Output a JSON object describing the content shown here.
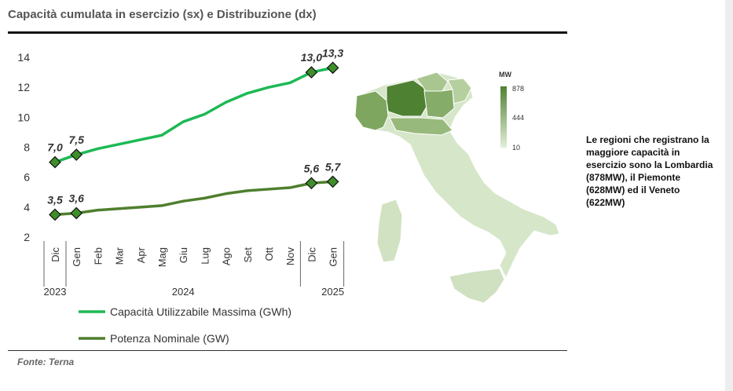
{
  "title": "Capacità cumulata in esercizio (sx) e Distribuzione (dx)",
  "source": "Fonte: Terna",
  "note": "Le regioni che registrano la maggiore capacità in esercizio sono la Lombardia (878MW), il Piemonte (628MW) ed il Veneto (622MW)",
  "colors": {
    "capacity_line": "#1db954",
    "power_line": "#4f7f2e",
    "marker_fill": "#3e8e2a",
    "map_low": "#e3eed9",
    "map_high": "#4f8132"
  },
  "chart_data": [
    {
      "type": "line",
      "categories": [
        "Dic",
        "Gen",
        "Feb",
        "Mar",
        "Apr",
        "Mag",
        "Giu",
        "Lug",
        "Ago",
        "Set",
        "Ott",
        "Nov",
        "Dic",
        "Gen"
      ],
      "year_labels": [
        "2023",
        "2024",
        "2025"
      ],
      "ylim": [
        2,
        14
      ],
      "yticks": [
        2,
        4,
        6,
        8,
        10,
        12,
        14
      ],
      "grid": false,
      "legend_placement": "bottom",
      "series": [
        {
          "name": "Capacità Utilizzabile Massima (GWh)",
          "values": [
            7.0,
            7.5,
            7.9,
            8.2,
            8.5,
            8.8,
            9.7,
            10.2,
            11.0,
            11.6,
            12.0,
            12.3,
            13.0,
            13.3
          ],
          "labeled_points": [
            {
              "index": 0,
              "label": "7,0"
            },
            {
              "index": 1,
              "label": "7,5"
            },
            {
              "index": 12,
              "label": "13,0"
            },
            {
              "index": 13,
              "label": "13,3"
            }
          ]
        },
        {
          "name": "Potenza Nominale (GW)",
          "values": [
            3.5,
            3.6,
            3.8,
            3.9,
            4.0,
            4.1,
            4.4,
            4.6,
            4.9,
            5.1,
            5.2,
            5.3,
            5.6,
            5.7
          ],
          "labeled_points": [
            {
              "index": 0,
              "label": "3,5"
            },
            {
              "index": 1,
              "label": "3,6"
            },
            {
              "index": 12,
              "label": "5,6"
            },
            {
              "index": 13,
              "label": "5,7"
            }
          ]
        }
      ]
    },
    {
      "type": "heatmap",
      "legend_title": "MW",
      "scale_labels": [
        "878",
        "444",
        "10"
      ],
      "scale": [
        10,
        878
      ]
    }
  ]
}
